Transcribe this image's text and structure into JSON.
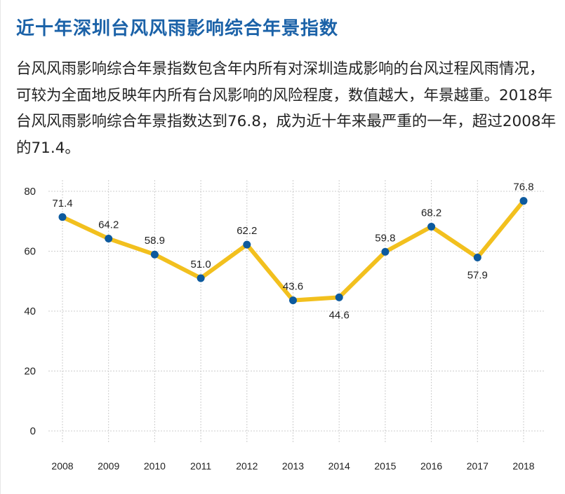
{
  "title": "近十年深圳台风风雨影响综合年景指数",
  "description": "台风风雨影响综合年景指数包含年内所有对深圳造成影响的台风过程风雨情况，可较为全面地反映年内所有台风影响的风险程度，数值越大，年景越重。2018年台风风雨影响综合年景指数达到76.8，成为近十年来最严重的一年，超过2008年的71.4。",
  "chart_data": {
    "type": "line",
    "title": "",
    "xlabel": "",
    "ylabel": "",
    "categories": [
      "2008",
      "2009",
      "2010",
      "2011",
      "2012",
      "2013",
      "2014",
      "2015",
      "2016",
      "2017",
      "2018"
    ],
    "values": [
      71.4,
      64.2,
      58.9,
      51.0,
      62.2,
      43.6,
      44.6,
      59.8,
      68.2,
      57.9,
      76.8
    ],
    "data_labels": [
      "71.4",
      "64.2",
      "58.9",
      "51.0",
      "62.2",
      "43.6",
      "44.6",
      "59.8",
      "68.2",
      "57.9",
      "76.8"
    ],
    "yticks": [
      "0",
      "20",
      "40",
      "60",
      "80"
    ],
    "ylim": [
      0,
      80
    ],
    "grid": true,
    "line_color": "#f2c01e",
    "marker_color": "#0d5a9e"
  }
}
